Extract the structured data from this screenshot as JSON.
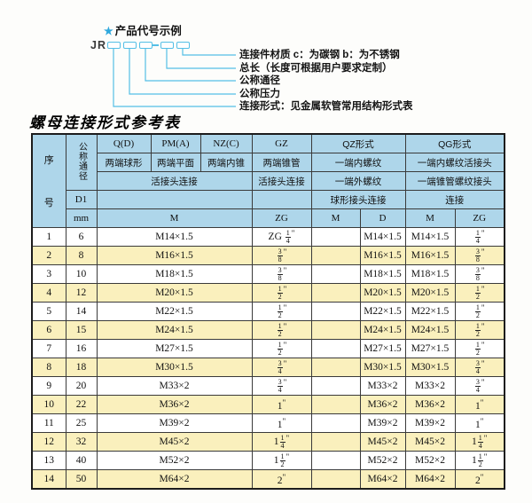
{
  "diagram": {
    "star": "★",
    "title": "产品代号示例",
    "prefix": "JR",
    "labels": [
      "连接件材质  c：为碳钢  b：为不锈钢",
      "总长（长度可根据用户要求定制）",
      "公称通径",
      "公称压力",
      "连接形式：见金属软管常用结构形式表"
    ]
  },
  "table_title": "螺母连接形式参考表",
  "table": {
    "header": {
      "seq_top": "序",
      "seq_bottom": "号",
      "dn_vertical": "公称通径",
      "d1": "D1",
      "unit_mm": "mm",
      "col_q": "Q(D)",
      "col_pm": "PM(A)",
      "col_nz": "NZ(C)",
      "col_gz": "GZ",
      "col_qz": "QZ形式",
      "col_qg": "QG形式",
      "q_desc": "两端球形",
      "pm_desc": "两端平面",
      "nz_desc": "两端内锥",
      "gz_desc": "两端锥管",
      "qz_desc1": "一端内螺纹",
      "qg_desc1": "一端内螺纹活接头",
      "union_left": "活接头连接",
      "union_gz": "活接头连接",
      "qz_desc2": "一端外螺纹",
      "qg_desc2": "一端锥管螺纹接头",
      "qz_desc3": "球形接头连接",
      "qg_desc3": "连接",
      "unit_m": "M",
      "unit_zg": "ZG",
      "unit_qz_m": "M",
      "unit_qz_d": "D",
      "unit_qg_m": "M",
      "unit_qg_zg": "ZG"
    },
    "rows": [
      [
        "1",
        "6",
        "M14×1.5",
        "ZG {1/4}\"",
        "",
        "M14×1.5",
        "M14×1.5",
        "{1/4}\""
      ],
      [
        "2",
        "8",
        "M16×1.5",
        "{3/8}\"",
        "",
        "M16×1.5",
        "M16×1.5",
        "{3/8}\""
      ],
      [
        "3",
        "10",
        "M18×1.5",
        "{3/8}\"",
        "",
        "M18×1.5",
        "M18×1.5",
        "{3/8}\""
      ],
      [
        "4",
        "12",
        "M20×1.5",
        "{1/2}\"",
        "",
        "M20×1.5",
        "M20×1.5",
        "{1/2}\""
      ],
      [
        "5",
        "14",
        "M22×1.5",
        "{1/2}\"",
        "",
        "M22×1.5",
        "M22×1.5",
        "{1/2}\""
      ],
      [
        "6",
        "15",
        "M24×1.5",
        "{1/2}\"",
        "",
        "M24×1.5",
        "M24×1.5",
        "{1/2}\""
      ],
      [
        "7",
        "16",
        "M27×1.5",
        "{1/2}\"",
        "",
        "M27×1.5",
        "M27×1.5",
        "{1/2}\""
      ],
      [
        "8",
        "18",
        "M30×1.5",
        "{3/4}\"",
        "",
        "M30×1.5",
        "M30×1.5",
        "{3/4}\""
      ],
      [
        "9",
        "20",
        "M33×2",
        "{3/4}\"",
        "",
        "M33×2",
        "M33×2",
        "{3/4}\""
      ],
      [
        "10",
        "22",
        "M36×2",
        "1\"",
        "",
        "M36×2",
        "M36×2",
        "1\""
      ],
      [
        "11",
        "25",
        "M39×2",
        "1\"",
        "",
        "M39×2",
        "M39×2",
        "1\""
      ],
      [
        "12",
        "32",
        "M45×2",
        "1{1/4}\"",
        "",
        "M45×2",
        "M45×2",
        "1{1/4}\""
      ],
      [
        "13",
        "40",
        "M52×2",
        "1{1/2}\"",
        "",
        "M52×2",
        "M52×2",
        "1{1/2}\""
      ],
      [
        "14",
        "50",
        "M64×2",
        "2\"",
        "",
        "M64×2",
        "M64×2",
        "2\""
      ]
    ]
  },
  "colors": {
    "header_bg": "#aed6ea",
    "row_alt_bg": "#faf0bd",
    "diagram_line": "#54bfe6",
    "border": "#1c1c1c",
    "star_blue": "#2fa8dd"
  }
}
